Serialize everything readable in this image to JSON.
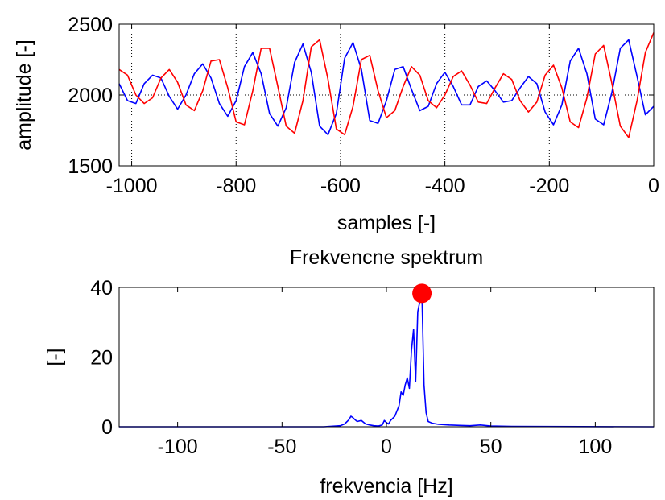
{
  "chart_data": [
    {
      "type": "line",
      "title": "",
      "xlabel": "samples [-]",
      "ylabel": "amplitude [-]",
      "xlim": [
        -1024,
        0
      ],
      "ylim": [
        1500,
        2500
      ],
      "x_ticks": [
        -1000,
        -800,
        -600,
        -400,
        -200,
        0
      ],
      "y_ticks": [
        1500,
        2000,
        2500
      ],
      "grid": "dotted",
      "series": [
        {
          "color": "#0000ff",
          "x": [
            -1024,
            -1008,
            -992,
            -976,
            -960,
            -944,
            -928,
            -912,
            -896,
            -880,
            -864,
            -848,
            -832,
            -816,
            -800,
            -784,
            -768,
            -752,
            -736,
            -720,
            -704,
            -688,
            -672,
            -656,
            -640,
            -624,
            -608,
            -592,
            -576,
            -560,
            -544,
            -528,
            -512,
            -496,
            -480,
            -464,
            -448,
            -432,
            -416,
            -400,
            -384,
            -368,
            -352,
            -336,
            -320,
            -304,
            -288,
            -272,
            -256,
            -240,
            -224,
            -208,
            -192,
            -176,
            -160,
            -144,
            -128,
            -112,
            -96,
            -80,
            -64,
            -48,
            -32,
            -16,
            0
          ],
          "y": [
            2080,
            1960,
            1940,
            2080,
            2140,
            2120,
            1990,
            1900,
            2000,
            2150,
            2220,
            2120,
            1940,
            1850,
            1960,
            2200,
            2300,
            2150,
            1870,
            1780,
            1910,
            2230,
            2360,
            2160,
            1780,
            1720,
            1870,
            2260,
            2370,
            2180,
            1820,
            1800,
            1960,
            2180,
            2200,
            2040,
            1890,
            1920,
            2080,
            2160,
            2060,
            1930,
            1930,
            2060,
            2100,
            2030,
            1950,
            1960,
            2050,
            2130,
            2080,
            1880,
            1790,
            1930,
            2240,
            2330,
            2150,
            1830,
            1790,
            2020,
            2330,
            2390,
            2130,
            1860,
            1920
          ]
        },
        {
          "color": "#ff0000",
          "x": [
            -1024,
            -1008,
            -992,
            -976,
            -960,
            -944,
            -928,
            -912,
            -896,
            -880,
            -864,
            -848,
            -832,
            -816,
            -800,
            -784,
            -768,
            -752,
            -736,
            -720,
            -704,
            -688,
            -672,
            -656,
            -640,
            -624,
            -608,
            -592,
            -576,
            -560,
            -544,
            -528,
            -512,
            -496,
            -480,
            -464,
            -448,
            -432,
            -416,
            -400,
            -384,
            -368,
            -352,
            -336,
            -320,
            -304,
            -288,
            -272,
            -256,
            -240,
            -224,
            -208,
            -192,
            -176,
            -160,
            -144,
            -128,
            -112,
            -96,
            -80,
            -64,
            -48,
            -32,
            -16,
            0
          ],
          "y": [
            2180,
            2140,
            2000,
            1940,
            1980,
            2120,
            2180,
            2090,
            1930,
            1890,
            2030,
            2240,
            2250,
            2050,
            1810,
            1790,
            2030,
            2330,
            2330,
            2060,
            1780,
            1730,
            1960,
            2340,
            2390,
            2110,
            1760,
            1720,
            1920,
            2250,
            2280,
            2030,
            1840,
            1890,
            2060,
            2200,
            2140,
            1960,
            1910,
            2000,
            2130,
            2170,
            2070,
            1950,
            1940,
            2050,
            2150,
            2110,
            1960,
            1880,
            1950,
            2140,
            2210,
            2050,
            1810,
            1770,
            1980,
            2290,
            2350,
            2080,
            1780,
            1700,
            1960,
            2300,
            2440
          ]
        }
      ]
    },
    {
      "type": "line",
      "title": "Frekvencne spektrum",
      "xlabel": "frekvencia [Hz]",
      "ylabel": "[-]",
      "xlim": [
        -128,
        128
      ],
      "ylim": [
        0,
        40
      ],
      "x_ticks": [
        -100,
        -50,
        0,
        50,
        100
      ],
      "y_ticks": [
        0,
        20,
        40
      ],
      "grid": "off",
      "series": [
        {
          "color": "#0000ff",
          "x": [
            -128,
            -30,
            -22,
            -20,
            -18,
            -17,
            -16,
            -15,
            -14,
            -12,
            -10,
            -8,
            -6,
            -4,
            -2,
            -1,
            0,
            1,
            2,
            4,
            6,
            7,
            8,
            9,
            10,
            11,
            12,
            13,
            14,
            15,
            16,
            17,
            18,
            19,
            20,
            22,
            25,
            30,
            35,
            40,
            45,
            50,
            60,
            128
          ],
          "y": [
            0,
            0,
            0.3,
            0.8,
            2,
            3,
            2.6,
            2,
            1.5,
            1.8,
            0.8,
            0.5,
            0.3,
            0.2,
            0.5,
            1.8,
            1.2,
            0.8,
            1.8,
            3,
            6,
            10,
            9,
            12,
            14,
            11,
            22,
            28,
            13,
            33,
            36,
            38,
            12,
            4,
            1.5,
            1,
            0.7,
            0.5,
            0.4,
            0.3,
            0.5,
            0.2,
            0.1,
            0
          ]
        }
      ],
      "marker": {
        "x": 17,
        "y": 38.3,
        "color": "#ff0000"
      }
    }
  ]
}
